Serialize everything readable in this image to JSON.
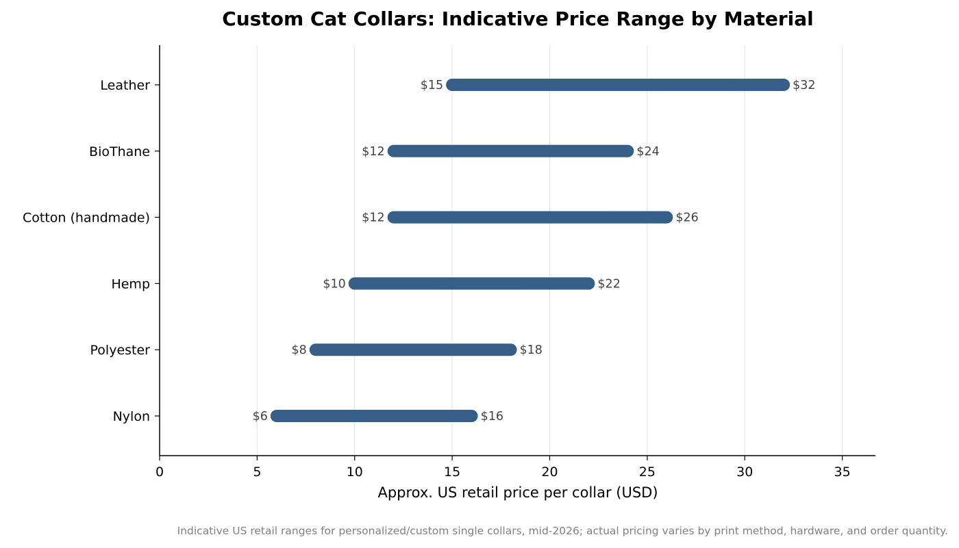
{
  "chart_data": {
    "type": "bar",
    "orientation": "horizontal",
    "subtype": "range",
    "title": "Custom Cat Collars: Indicative Price Range by Material",
    "xlabel": "Approx. US retail price per collar (USD)",
    "ylabel": "",
    "xlim": [
      0,
      36.7
    ],
    "xticks": [
      0,
      5,
      10,
      15,
      20,
      25,
      30,
      35
    ],
    "grid": "vertical",
    "categories": [
      "Nylon",
      "Polyester",
      "Hemp",
      "Cotton (handmade)",
      "BioThane",
      "Leather"
    ],
    "ranges": [
      {
        "low": 6,
        "high": 16,
        "low_label": "$6",
        "high_label": "$16"
      },
      {
        "low": 8,
        "high": 18,
        "low_label": "$8",
        "high_label": "$18"
      },
      {
        "low": 10,
        "high": 22,
        "low_label": "$10",
        "high_label": "$22"
      },
      {
        "low": 12,
        "high": 26,
        "low_label": "$12",
        "high_label": "$26"
      },
      {
        "low": 12,
        "high": 24,
        "low_label": "$12",
        "high_label": "$24"
      },
      {
        "low": 15,
        "high": 32,
        "low_label": "$15",
        "high_label": "$32"
      }
    ],
    "bar_color": "#355f87",
    "note": "Indicative US retail ranges for personalized/custom single collars, mid-2026; actual pricing varies by print method, hardware, and order quantity."
  }
}
